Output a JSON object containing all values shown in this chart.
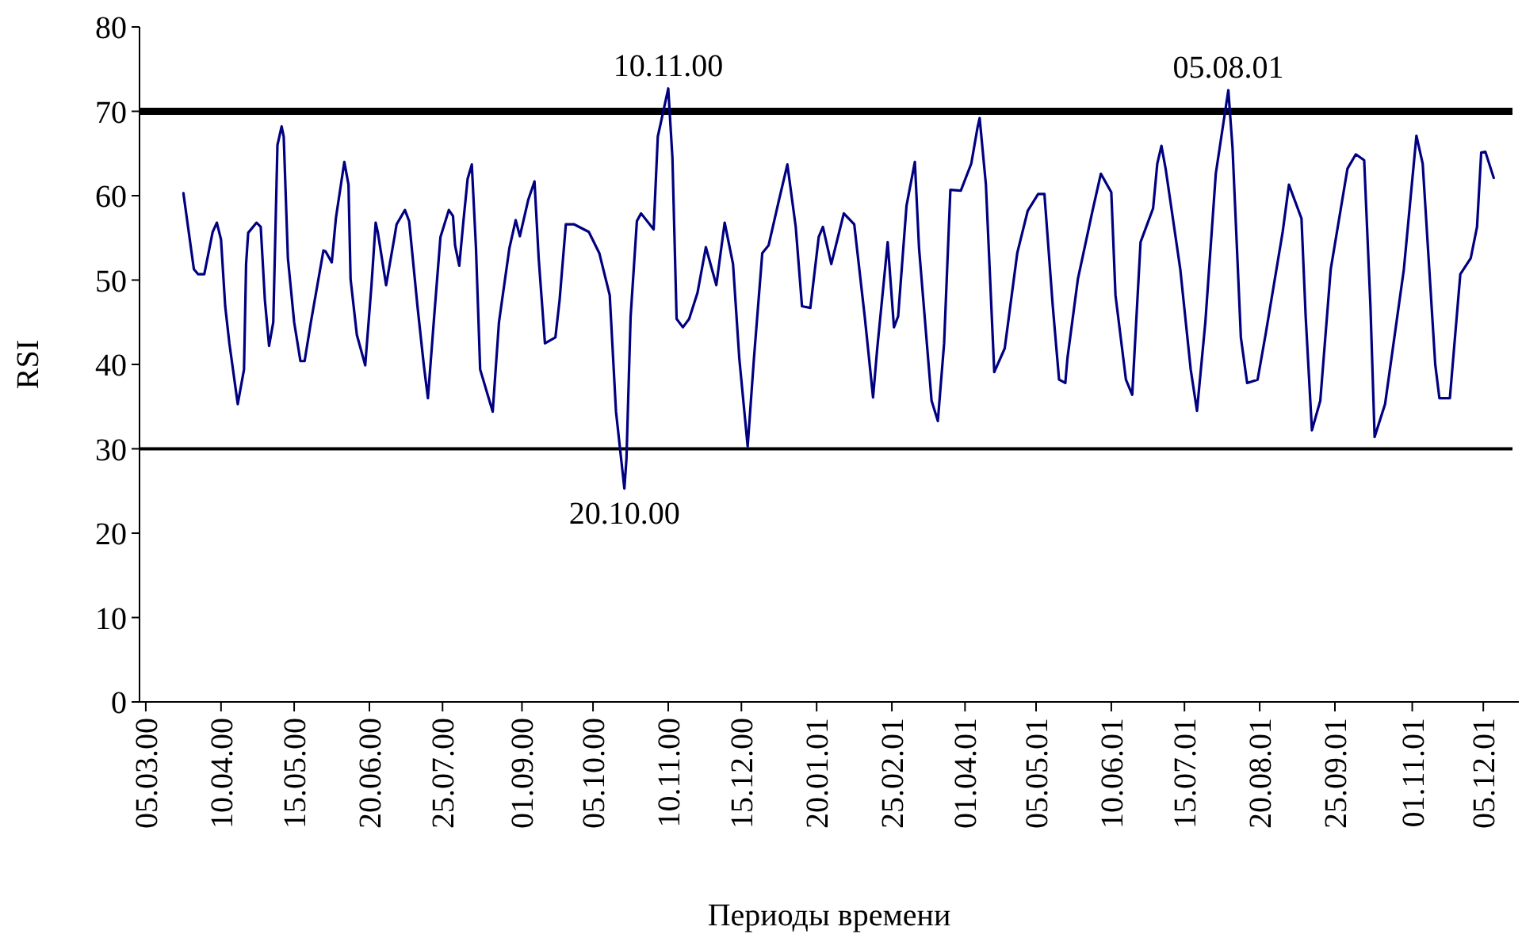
{
  "chart_data": {
    "type": "line",
    "xlabel": "Периоды времени",
    "ylabel": "RSI",
    "x": [
      "2000-03-23",
      "2000-03-28",
      "2000-03-30",
      "2000-04-02",
      "2000-04-06",
      "2000-04-08",
      "2000-04-10",
      "2000-04-12",
      "2000-04-14",
      "2000-04-18",
      "2000-04-21",
      "2000-04-22",
      "2000-04-23",
      "2000-04-27",
      "2000-04-29",
      "2000-05-01",
      "2000-05-03",
      "2000-05-05",
      "2000-05-07",
      "2000-05-09",
      "2000-05-10",
      "2000-05-12",
      "2000-05-15",
      "2000-05-18",
      "2000-05-20",
      "2000-05-23",
      "2000-05-29",
      "2000-05-30",
      "2000-06-02",
      "2000-06-04",
      "2000-06-08",
      "2000-06-10",
      "2000-06-11",
      "2000-06-14",
      "2000-06-18",
      "2000-06-21",
      "2000-06-23",
      "2000-06-24",
      "2000-06-28",
      "2000-07-02",
      "2000-07-03",
      "2000-07-07",
      "2000-07-09",
      "2000-07-13",
      "2000-07-16",
      "2000-07-18",
      "2000-07-21",
      "2000-07-24",
      "2000-07-28",
      "2000-07-30",
      "2000-07-31",
      "2000-08-02",
      "2000-08-04",
      "2000-08-06",
      "2000-08-08",
      "2000-08-10",
      "2000-08-12",
      "2000-08-18",
      "2000-08-21",
      "2000-08-26",
      "2000-08-29",
      "2000-08-31",
      "2000-09-04",
      "2000-09-07",
      "2000-09-09",
      "2000-09-12",
      "2000-09-17",
      "2000-09-19",
      "2000-09-22",
      "2000-09-26",
      "2000-10-03",
      "2000-10-08",
      "2000-10-13",
      "2000-10-16",
      "2000-10-20",
      "2000-10-21",
      "2000-10-23",
      "2000-10-26",
      "2000-10-28",
      "2000-11-03",
      "2000-11-05",
      "2000-11-10",
      "2000-11-12",
      "2000-11-14",
      "2000-11-17",
      "2000-11-20",
      "2000-11-24",
      "2000-11-28",
      "2000-12-03",
      "2000-12-07",
      "2000-12-11",
      "2000-12-14",
      "2000-12-18",
      "2000-12-21",
      "2000-12-25",
      "2000-12-28",
      "2001-01-02",
      "2001-01-06",
      "2001-01-10",
      "2001-01-13",
      "2001-01-17",
      "2001-01-21",
      "2001-01-23",
      "2001-01-27",
      "2001-02-02",
      "2001-02-07",
      "2001-02-12",
      "2001-02-16",
      "2001-02-18",
      "2001-02-23",
      "2001-02-26",
      "2001-02-28",
      "2001-03-04",
      "2001-03-08",
      "2001-03-10",
      "2001-03-16",
      "2001-03-19",
      "2001-03-22",
      "2001-03-25",
      "2001-03-30",
      "2001-04-04",
      "2001-04-07",
      "2001-04-08",
      "2001-04-11",
      "2001-04-15",
      "2001-04-20",
      "2001-04-26",
      "2001-05-01",
      "2001-05-06",
      "2001-05-09",
      "2001-05-13",
      "2001-05-16",
      "2001-05-19",
      "2001-05-20",
      "2001-05-25",
      "2001-06-01",
      "2001-06-05",
      "2001-06-10",
      "2001-06-12",
      "2001-06-17",
      "2001-06-20",
      "2001-06-24",
      "2001-06-30",
      "2001-07-02",
      "2001-07-04",
      "2001-07-06",
      "2001-07-13",
      "2001-07-18",
      "2001-07-21",
      "2001-07-25",
      "2001-07-30",
      "2001-08-05",
      "2001-08-07",
      "2001-08-11",
      "2001-08-14",
      "2001-08-19",
      "2001-08-23",
      "2001-08-31",
      "2001-09-03",
      "2001-09-09",
      "2001-09-11",
      "2001-09-14",
      "2001-09-18",
      "2001-09-23",
      "2001-10-01",
      "2001-10-05",
      "2001-10-09",
      "2001-10-12",
      "2001-10-14",
      "2001-10-19",
      "2001-10-28",
      "2001-11-03",
      "2001-11-06",
      "2001-11-12",
      "2001-11-14",
      "2001-11-19",
      "2001-11-24",
      "2001-11-29",
      "2001-12-02",
      "2001-12-04",
      "2001-12-06",
      "2001-12-10"
    ],
    "series": [
      {
        "color": "#000080",
        "values": [
          60.3,
          51.3,
          50.7,
          50.7,
          55.7,
          56.8,
          54.8,
          46.9,
          42.5,
          35.3,
          39.4,
          51.9,
          55.6,
          56.8,
          56.3,
          47.6,
          42.2,
          45.0,
          66.0,
          68.2,
          67.0,
          52.6,
          45.0,
          40.4,
          40.4,
          45.0,
          53.5,
          53.4,
          52.1,
          57.4,
          64.0,
          61.3,
          50.1,
          43.5,
          39.9,
          49.4,
          56.8,
          55.7,
          49.4,
          55.1,
          56.6,
          58.3,
          57.0,
          46.9,
          40.0,
          36.0,
          45.7,
          55.1,
          58.3,
          57.6,
          54.1,
          51.7,
          57.0,
          62.0,
          63.7,
          53.8,
          39.4,
          34.4,
          45.0,
          53.8,
          57.1,
          55.2,
          59.5,
          61.7,
          52.6,
          42.5,
          43.2,
          47.6,
          56.6,
          56.6,
          55.7,
          53.2,
          48.2,
          34.4,
          25.3,
          28.8,
          45.7,
          57.0,
          57.9,
          56.0,
          67.0,
          72.7,
          64.5,
          45.4,
          44.4,
          45.4,
          48.5,
          53.9,
          49.4,
          56.8,
          51.9,
          40.7,
          30.3,
          40.7,
          53.2,
          54.1,
          59.5,
          63.7,
          56.3,
          46.9,
          46.7,
          55.1,
          56.3,
          51.9,
          57.9,
          56.6,
          45.7,
          36.1,
          41.9,
          54.5,
          44.4,
          45.7,
          58.8,
          64.0,
          53.8,
          35.7,
          33.3,
          42.5,
          60.7,
          60.6,
          63.8,
          68.1,
          69.2,
          61.3,
          39.1,
          41.9,
          53.2,
          58.2,
          60.2,
          60.2,
          46.9,
          38.2,
          37.8,
          40.7,
          50.1,
          58.2,
          62.6,
          60.4,
          48.2,
          38.2,
          36.4,
          54.5,
          58.5,
          63.8,
          65.9,
          63.2,
          51.3,
          39.4,
          34.5,
          45.0,
          62.6,
          72.5,
          65.7,
          43.2,
          37.8,
          38.2,
          43.8,
          55.7,
          61.3,
          57.3,
          45.7,
          32.2,
          35.7,
          51.3,
          63.2,
          64.9,
          64.2,
          46.9,
          31.4,
          35.3,
          51.3,
          67.1,
          63.8,
          40.0,
          36.0,
          36.0,
          50.7,
          52.6,
          56.3,
          65.1,
          65.2,
          62.1
        ]
      }
    ],
    "xlim": [
      "2000-03-02",
      "2001-12-22"
    ],
    "xticks": [
      {
        "value": "2000-03-05",
        "label": "05.03.00"
      },
      {
        "value": "2000-04-10",
        "label": "10.04.00"
      },
      {
        "value": "2000-05-15",
        "label": "15.05.00"
      },
      {
        "value": "2000-06-20",
        "label": "20.06.00"
      },
      {
        "value": "2000-07-25",
        "label": "25.07.00"
      },
      {
        "value": "2000-09-01",
        "label": "01.09.00"
      },
      {
        "value": "2000-10-05",
        "label": "05.10.00"
      },
      {
        "value": "2000-11-10",
        "label": "10.11.00"
      },
      {
        "value": "2000-12-15",
        "label": "15.12.00"
      },
      {
        "value": "2001-01-20",
        "label": "20.01.01"
      },
      {
        "value": "2001-02-25",
        "label": "25.02.01"
      },
      {
        "value": "2001-04-01",
        "label": "01.04.01"
      },
      {
        "value": "2001-05-05",
        "label": "05.05.01"
      },
      {
        "value": "2001-06-10",
        "label": "10.06.01"
      },
      {
        "value": "2001-07-15",
        "label": "15.07.01"
      },
      {
        "value": "2001-08-20",
        "label": "20.08.01"
      },
      {
        "value": "2001-09-25",
        "label": "25.09.01"
      },
      {
        "value": "2001-11-01",
        "label": "01.11.01"
      },
      {
        "value": "2001-12-05",
        "label": "05.12.01"
      }
    ],
    "ylim": [
      0,
      80
    ],
    "yticks": [
      0,
      10,
      20,
      30,
      40,
      50,
      60,
      70,
      80
    ],
    "ref_lines": [
      {
        "axis": "y",
        "value": 70,
        "color": "#000000"
      },
      {
        "axis": "y",
        "value": 30,
        "color": "#000000"
      }
    ],
    "annotations": [
      {
        "text": "10.11.00",
        "x": "2000-11-10",
        "y": 72.7
      },
      {
        "text": "20.10.00",
        "x": "2000-10-20",
        "y": 25.3
      },
      {
        "text": "05.08.01",
        "x": "2001-08-05",
        "y": 72.5
      }
    ],
    "grid": false,
    "marker": "none",
    "line_style": "solid"
  }
}
